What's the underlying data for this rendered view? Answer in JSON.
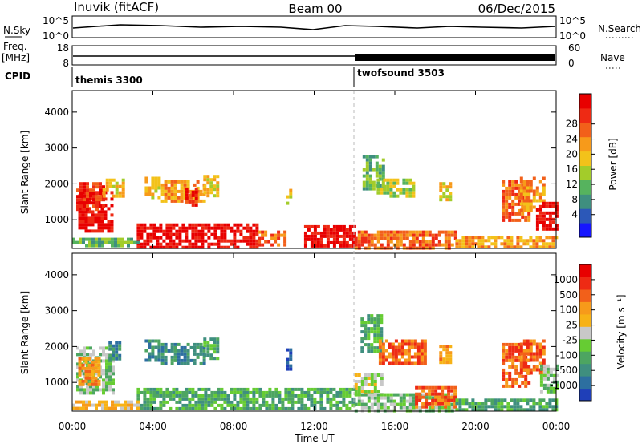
{
  "header": {
    "station": "Inuvik (fitACF)",
    "beam": "Beam 00",
    "date": "06/Dec/2015"
  },
  "top_panels": {
    "nsky_label": "N.Sky",
    "nsky_ticks": [
      "10^5",
      "10^0"
    ],
    "nsearch_label": "N.Search",
    "nsearch_ticks": [
      "10^5",
      "10^0"
    ],
    "freq_label": "Freq.",
    "freq_unit": "[MHz]",
    "freq_ticks": [
      "18",
      "8"
    ],
    "nave_label": "Nave",
    "nave_ticks": [
      "60",
      "0"
    ],
    "cpid_label": "CPID",
    "cpid_segments": [
      {
        "name": "themis 3300",
        "start": 0,
        "end": 14
      },
      {
        "name": "twofsound 3503",
        "start": 14,
        "end": 24
      }
    ]
  },
  "chart_data": [
    {
      "type": "heatmap",
      "ylabel": "Slant Range [km]",
      "yticks": [
        "1000",
        "2000",
        "3000",
        "4000"
      ],
      "ylim": [
        200,
        4600
      ],
      "xlim": [
        0,
        24
      ],
      "colorbar": {
        "label": "Power [dB]",
        "ticks": [
          "4",
          "8",
          "12",
          "16",
          "20",
          "24",
          "28"
        ],
        "colors": [
          "#1616ff",
          "#2c58b8",
          "#3f8f7f",
          "#56b35e",
          "#a3cc2a",
          "#f3c21a",
          "#f79a1a",
          "#f2601a",
          "#ee2a14",
          "#e80000"
        ]
      },
      "regions": [
        {
          "t0": 0.3,
          "t1": 2.0,
          "r0": 700,
          "r1": 1800,
          "level": 9
        },
        {
          "t0": 0.2,
          "t1": 1.5,
          "r0": 1300,
          "r1": 2050,
          "level": 8
        },
        {
          "t0": 1.5,
          "t1": 2.5,
          "r0": 1650,
          "r1": 2150,
          "level": 5
        },
        {
          "t0": 3.6,
          "t1": 4.3,
          "r0": 1650,
          "r1": 2200,
          "level": 5
        },
        {
          "t0": 4.4,
          "t1": 6.5,
          "r0": 1550,
          "r1": 2100,
          "level": 6
        },
        {
          "t0": 5.6,
          "t1": 6.2,
          "r0": 1400,
          "r1": 1900,
          "level": 8
        },
        {
          "t0": 6.5,
          "t1": 7.2,
          "r0": 1700,
          "r1": 2250,
          "level": 5
        },
        {
          "t0": 10.6,
          "t1": 10.9,
          "r0": 1500,
          "r1": 1950,
          "level": 5
        },
        {
          "t0": 14.4,
          "t1": 15.4,
          "r0": 1850,
          "r1": 2800,
          "level": 3
        },
        {
          "t0": 15.1,
          "t1": 17.0,
          "r0": 1700,
          "r1": 2150,
          "level": 4
        },
        {
          "t0": 18.2,
          "t1": 18.8,
          "r0": 1600,
          "r1": 2050,
          "level": 5
        },
        {
          "t0": 21.3,
          "t1": 22.6,
          "r0": 950,
          "r1": 2100,
          "level": 7
        },
        {
          "t0": 22.2,
          "t1": 23.4,
          "r0": 1300,
          "r1": 2200,
          "level": 6
        },
        {
          "t0": 23.0,
          "t1": 24.0,
          "r0": 700,
          "r1": 1500,
          "level": 9
        },
        {
          "t0": 3.2,
          "t1": 9.2,
          "r0": 250,
          "r1": 900,
          "level": 9
        },
        {
          "t0": 9.2,
          "t1": 10.6,
          "r0": 300,
          "r1": 700,
          "level": 7
        },
        {
          "t0": 11.5,
          "t1": 14.0,
          "r0": 250,
          "r1": 850,
          "level": 9
        },
        {
          "t0": 14.0,
          "t1": 19.0,
          "r0": 250,
          "r1": 700,
          "level": 7
        },
        {
          "t0": 19.0,
          "t1": 24.0,
          "r0": 250,
          "r1": 550,
          "level": 6
        },
        {
          "t0": 0.0,
          "t1": 3.2,
          "r0": 250,
          "r1": 500,
          "level": 3
        }
      ]
    },
    {
      "type": "heatmap",
      "ylabel": "Slant Range [km]",
      "yticks": [
        "1000",
        "2000",
        "3000",
        "4000"
      ],
      "ylim": [
        200,
        4600
      ],
      "xlim": [
        0,
        24
      ],
      "xticks": [
        "00:00",
        "04:00",
        "08:00",
        "12:00",
        "16:00",
        "20:00",
        "00:00"
      ],
      "xlabel": "Time UT",
      "colorbar": {
        "label": "Velocity [m s⁻¹]",
        "ticks": [
          "1000",
          "500",
          "100",
          "25",
          "-25",
          "-100",
          "-500",
          "-1000"
        ],
        "colors": [
          "#1f3fb8",
          "#2d6fa0",
          "#3f8f7f",
          "#4da561",
          "#66cc33",
          "#c8c8c8",
          "#f7b216",
          "#f79a1a",
          "#f2601a",
          "#ee2a14",
          "#e80000"
        ]
      },
      "regions": [
        {
          "t0": 0.2,
          "t1": 2.0,
          "r0": 700,
          "r1": 2000,
          "level": 4
        },
        {
          "t0": 0.3,
          "t1": 1.3,
          "r0": 900,
          "r1": 1700,
          "level": 7
        },
        {
          "t0": 1.8,
          "t1": 2.4,
          "r0": 1650,
          "r1": 2150,
          "level": 2
        },
        {
          "t0": 3.6,
          "t1": 4.3,
          "r0": 1650,
          "r1": 2200,
          "level": 2
        },
        {
          "t0": 4.4,
          "t1": 6.6,
          "r0": 1550,
          "r1": 2100,
          "level": 2
        },
        {
          "t0": 6.5,
          "t1": 7.2,
          "r0": 1700,
          "r1": 2250,
          "level": 3
        },
        {
          "t0": 10.6,
          "t1": 10.9,
          "r0": 1400,
          "r1": 1950,
          "level": 0
        },
        {
          "t0": 14.3,
          "t1": 15.3,
          "r0": 1900,
          "r1": 2900,
          "level": 3
        },
        {
          "t0": 14.0,
          "t1": 15.4,
          "r0": 650,
          "r1": 1250,
          "level": 5
        },
        {
          "t0": 15.2,
          "t1": 17.5,
          "r0": 1500,
          "r1": 2200,
          "level": 8
        },
        {
          "t0": 18.2,
          "t1": 18.8,
          "r0": 1600,
          "r1": 2050,
          "level": 7
        },
        {
          "t0": 21.3,
          "t1": 22.6,
          "r0": 900,
          "r1": 2100,
          "level": 8
        },
        {
          "t0": 22.2,
          "t1": 23.4,
          "r0": 1300,
          "r1": 2200,
          "level": 8
        },
        {
          "t0": 23.2,
          "t1": 24.0,
          "r0": 700,
          "r1": 1500,
          "level": 4
        },
        {
          "t0": 3.2,
          "t1": 14.0,
          "r0": 250,
          "r1": 850,
          "level": 3
        },
        {
          "t0": 14.0,
          "t1": 19.0,
          "r0": 250,
          "r1": 700,
          "level": 4
        },
        {
          "t0": 17.0,
          "t1": 19.0,
          "r0": 300,
          "r1": 900,
          "level": 8
        },
        {
          "t0": 19.0,
          "t1": 24.0,
          "r0": 250,
          "r1": 550,
          "level": 3
        },
        {
          "t0": 0.0,
          "t1": 3.2,
          "r0": 250,
          "r1": 500,
          "level": 6
        }
      ]
    }
  ]
}
